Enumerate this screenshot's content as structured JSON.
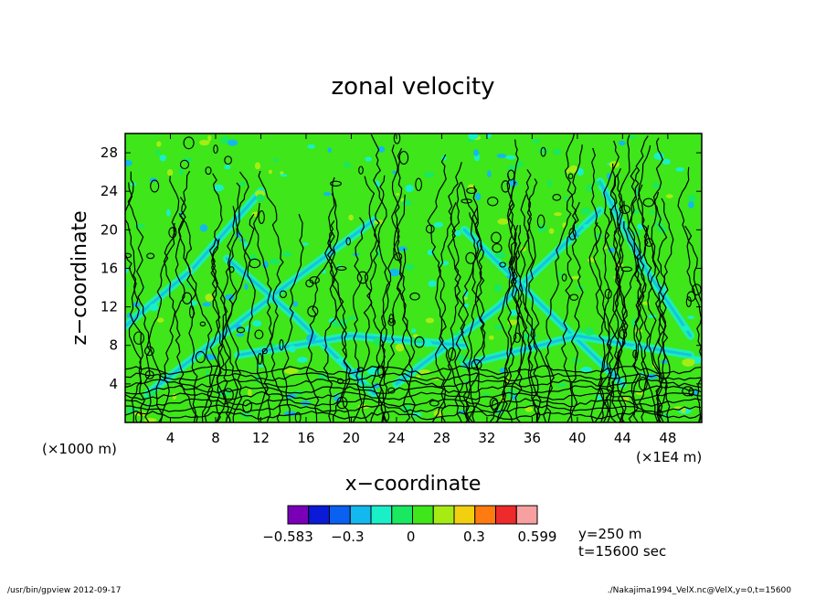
{
  "page": {
    "footer_left": "/usr/bin/gpview  2012-09-17",
    "footer_right": "./Nakajima1994_VelX.nc@VelX,y=0,t=15600"
  },
  "chart_data": {
    "type": "heatmap",
    "title": "zonal velocity",
    "xlabel": "x−coordinate",
    "ylabel": "z−coordinate",
    "x_unit_label": "(×1E4 m)",
    "y_unit_label": "(×1000 m)",
    "xlim": [
      0,
      51
    ],
    "ylim": [
      0,
      30
    ],
    "x_ticks": [
      4,
      8,
      12,
      16,
      20,
      24,
      28,
      32,
      36,
      40,
      44,
      48
    ],
    "x_tick_labels": [
      "4",
      "8",
      "12",
      "16",
      "20",
      "24",
      "28",
      "32",
      "36",
      "40",
      "44",
      "48"
    ],
    "y_ticks": [
      4,
      8,
      12,
      16,
      20,
      24,
      28
    ],
    "y_tick_labels": [
      "4",
      "8",
      "12",
      "16",
      "20",
      "24",
      "28"
    ],
    "colorbar": {
      "colors": [
        "#7a00b8",
        "#0a1ad6",
        "#0a60f0",
        "#13b8ee",
        "#19f0c8",
        "#19e860",
        "#3ee61a",
        "#a6ec14",
        "#f2d010",
        "#ff7a10",
        "#ee2a2a",
        "#f8a0a0"
      ],
      "tick_labels": [
        "−0.583",
        "−0.3",
        "0",
        "0.3",
        "0.599"
      ],
      "tick_values": [
        -0.583,
        -0.3,
        0,
        0.3,
        0.599
      ],
      "range": [
        -0.583,
        0.599
      ]
    },
    "annotations": [
      "y=250 m",
      "t=15600 sec"
    ],
    "field_description_colors": {
      "background": "#3ee61a",
      "weak_positive": "#19e860",
      "mid_negative": "#19f0c8",
      "strong_negative": "#13b8ee",
      "positive_patch": "#a6ec14",
      "contour": "#000000"
    }
  }
}
